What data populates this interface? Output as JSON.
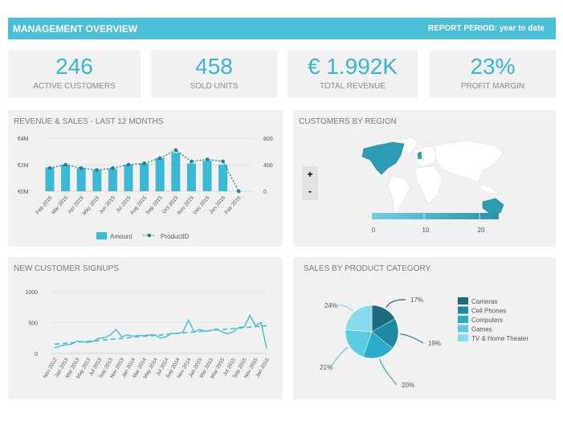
{
  "header": {
    "title": "MANAGEMENT OVERVIEW",
    "report_period": "REPORT PERIOD: year to date"
  },
  "kpis": [
    {
      "value": "246",
      "label": "ACTIVE CUSTOMERS"
    },
    {
      "value": "458",
      "label": "SOLD UNITS"
    },
    {
      "value": "€ 1.992K",
      "label": "TOTAL REVENUE"
    },
    {
      "value": "23%",
      "label": "PROFIT MARGIN"
    }
  ],
  "colors": {
    "accent": "#4bbfd6",
    "bar": "#3bb8d4",
    "line": "#1f7f93"
  },
  "panels": {
    "revenue_title": "REVENUE & SALES -  LAST 12 MONTHS",
    "region_title": "CUSTOMERS BY REGION",
    "signups_title": "NEW CUSTOMER SIGNUPS",
    "category_title": "SALES BY PRODUCT CATEGORY"
  },
  "map": {
    "zoom_in": "+",
    "zoom_out": "-",
    "scale_labels": [
      "0",
      "10",
      "20"
    ],
    "highlighted": [
      "North America",
      "United Kingdom",
      "Australia"
    ]
  },
  "chart_data": [
    {
      "type": "bar",
      "title": "REVENUE & SALES -  LAST 12 MONTHS",
      "categories": [
        "Feb 2015",
        "Mar 2015",
        "Apr 2015",
        "May 2015",
        "Jun 2015",
        "Jul 2015",
        "Aug 2015",
        "Sep 2015",
        "Oct 2015",
        "Nov 2015",
        "Dec 2015",
        "Jan 2016",
        "Feb 2016"
      ],
      "y_ticks": [
        "€0M",
        "€2M",
        "€4M"
      ],
      "y2_ticks": [
        "0",
        "400",
        "800"
      ],
      "ylim": [
        0,
        4
      ],
      "y2lim": [
        0,
        800
      ],
      "series": [
        {
          "name": "Amount",
          "type": "bar",
          "values": [
            1.8,
            2.0,
            1.75,
            1.6,
            1.7,
            2.0,
            2.1,
            2.5,
            2.9,
            2.1,
            2.3,
            2.0,
            null
          ]
        },
        {
          "name": "ProductID",
          "type": "line",
          "values": [
            350,
            400,
            350,
            320,
            350,
            400,
            420,
            500,
            620,
            450,
            480,
            450,
            0
          ]
        }
      ],
      "legend": "bottom"
    },
    {
      "type": "line",
      "title": "NEW CUSTOMER SIGNUPS",
      "x_ticks": [
        "Nov 2012",
        "Jan 2013",
        "Mar 2013",
        "May 2013",
        "Jul 2013",
        "Sep 2013",
        "Nov 2013",
        "Jan 2014",
        "Mar 2014",
        "May 2014",
        "Jul 2014",
        "Sep 2014",
        "Nov 2014",
        "Jan 2015",
        "Mar 2015",
        "May 2015",
        "Jul 2015",
        "Sep 2015",
        "Nov 2015",
        "Jan 2016"
      ],
      "y_ticks": [
        "0",
        "500",
        "1000"
      ],
      "ylim": [
        0,
        1000
      ],
      "values": [
        90,
        120,
        140,
        150,
        200,
        190,
        180,
        200,
        250,
        260,
        300,
        390,
        270,
        300,
        280,
        290,
        290,
        300,
        300,
        250,
        270,
        330,
        320,
        350,
        540,
        350,
        390,
        360,
        370,
        400,
        350,
        320,
        350,
        420,
        430,
        620,
        450,
        500,
        80
      ],
      "trend": [
        150,
        450
      ]
    },
    {
      "type": "pie",
      "title": "SALES BY PRODUCT CATEGORY",
      "labels": [
        "Cameras",
        "Cell Phones",
        "Computers",
        "Games",
        "TV & Home Theater"
      ],
      "values": [
        17,
        19,
        20,
        21,
        24
      ],
      "value_labels": [
        "17%",
        "19%",
        "20%",
        "21%",
        "24%"
      ],
      "colors": [
        "#1a6b7e",
        "#1e89a1",
        "#29acc9",
        "#5ccbe2",
        "#87dbed"
      ],
      "legend": "right"
    }
  ]
}
